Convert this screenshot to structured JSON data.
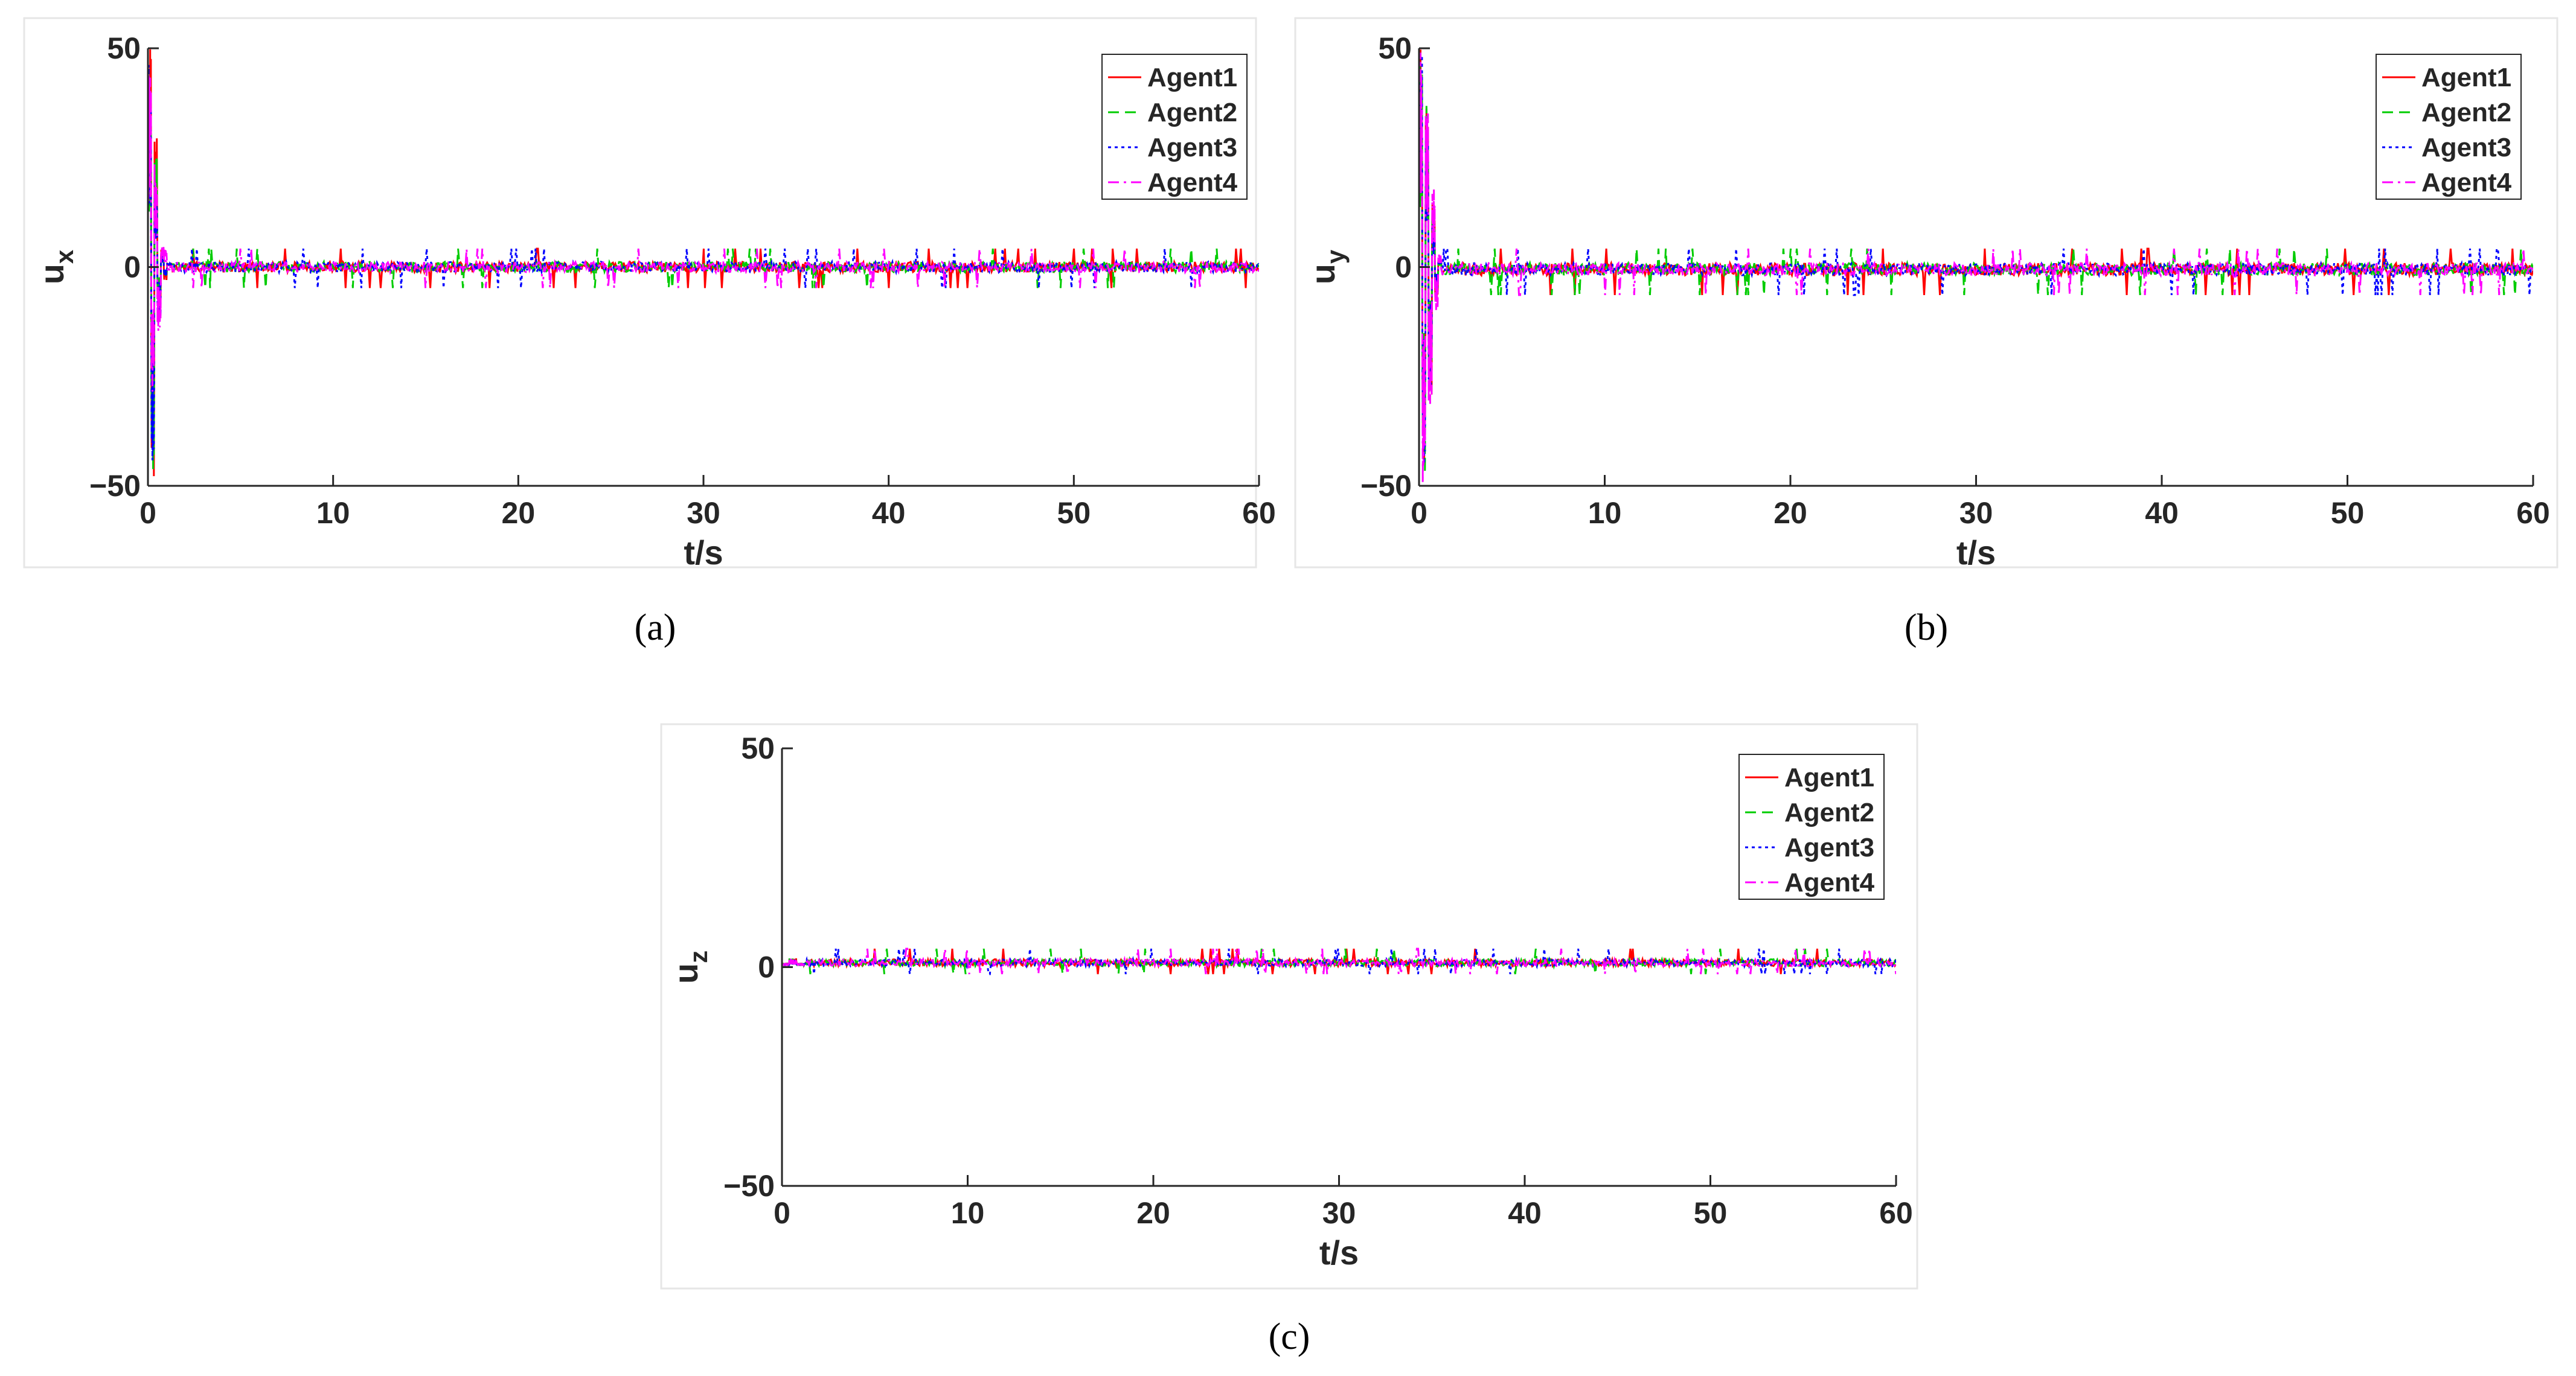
{
  "chart_data": [
    {
      "type": "line",
      "panel": "(a)",
      "ylabel_main": "u",
      "ylabel_sub": "x",
      "xlabel": "t/s",
      "xlim": [
        0,
        60
      ],
      "ylim": [
        -50,
        50
      ],
      "xticks": [
        0,
        10,
        20,
        30,
        40,
        50,
        60
      ],
      "yticks": [
        -50,
        0,
        50
      ],
      "legend_position": "top-right",
      "series": [
        {
          "name": "Agent1",
          "color": "#ff0000",
          "dash": "solid",
          "transient": [
            50,
            -50,
            30,
            -10,
            5,
            -3,
            1
          ]
        },
        {
          "name": "Agent2",
          "color": "#00cc00",
          "dash": "dashed",
          "transient": [
            45,
            -48,
            25,
            -8,
            4,
            -2,
            0
          ]
        },
        {
          "name": "Agent3",
          "color": "#0000ff",
          "dash": "dotted",
          "transient": [
            48,
            -50,
            20,
            -12,
            3,
            -2,
            1
          ]
        },
        {
          "name": "Agent4",
          "color": "#ff00ff",
          "dash": "dashdot",
          "transient": [
            50,
            -30,
            25,
            -15,
            5,
            4,
            -1
          ]
        }
      ],
      "steady_band": [
        -3,
        3
      ]
    },
    {
      "type": "line",
      "panel": "(b)",
      "ylabel_main": "u",
      "ylabel_sub": "y",
      "xlabel": "t/s",
      "xlim": [
        0,
        60
      ],
      "ylim": [
        -50,
        50
      ],
      "xticks": [
        0,
        10,
        20,
        30,
        40,
        50,
        60
      ],
      "yticks": [
        -50,
        0,
        50
      ],
      "legend_position": "top-right",
      "series": [
        {
          "name": "Agent1",
          "color": "#ff0000",
          "dash": "solid",
          "transient": [
            50,
            -50,
            40,
            -30,
            15,
            -8,
            2
          ]
        },
        {
          "name": "Agent2",
          "color": "#00cc00",
          "dash": "dashed",
          "transient": [
            48,
            -50,
            38,
            -25,
            12,
            -6,
            1
          ]
        },
        {
          "name": "Agent3",
          "color": "#0000ff",
          "dash": "dotted",
          "transient": [
            50,
            -48,
            35,
            -28,
            10,
            -5,
            2
          ]
        },
        {
          "name": "Agent4",
          "color": "#ff00ff",
          "dash": "dashdot",
          "transient": [
            50,
            -50,
            42,
            -32,
            18,
            -10,
            3
          ]
        }
      ],
      "steady_band": [
        -4,
        3
      ]
    },
    {
      "type": "line",
      "panel": "(c)",
      "ylabel_main": "u",
      "ylabel_sub": "z",
      "xlabel": "t/s",
      "xlim": [
        0,
        60
      ],
      "ylim": [
        -50,
        50
      ],
      "xticks": [
        0,
        10,
        20,
        30,
        40,
        50,
        60
      ],
      "yticks": [
        -50,
        0,
        50
      ],
      "legend_position": "top-right",
      "series": [
        {
          "name": "Agent1",
          "color": "#ff0000",
          "dash": "solid",
          "transient": [
            1,
            2,
            1
          ]
        },
        {
          "name": "Agent2",
          "color": "#00cc00",
          "dash": "dashed",
          "transient": [
            1,
            2,
            1
          ]
        },
        {
          "name": "Agent3",
          "color": "#0000ff",
          "dash": "dotted",
          "transient": [
            1,
            2,
            1
          ]
        },
        {
          "name": "Agent4",
          "color": "#ff00ff",
          "dash": "dashdot",
          "transient": [
            1,
            2,
            1
          ]
        }
      ],
      "steady_band": [
        -1,
        3
      ]
    }
  ],
  "colors": {
    "axis": "#262626",
    "frame": "#e6e6e6"
  }
}
